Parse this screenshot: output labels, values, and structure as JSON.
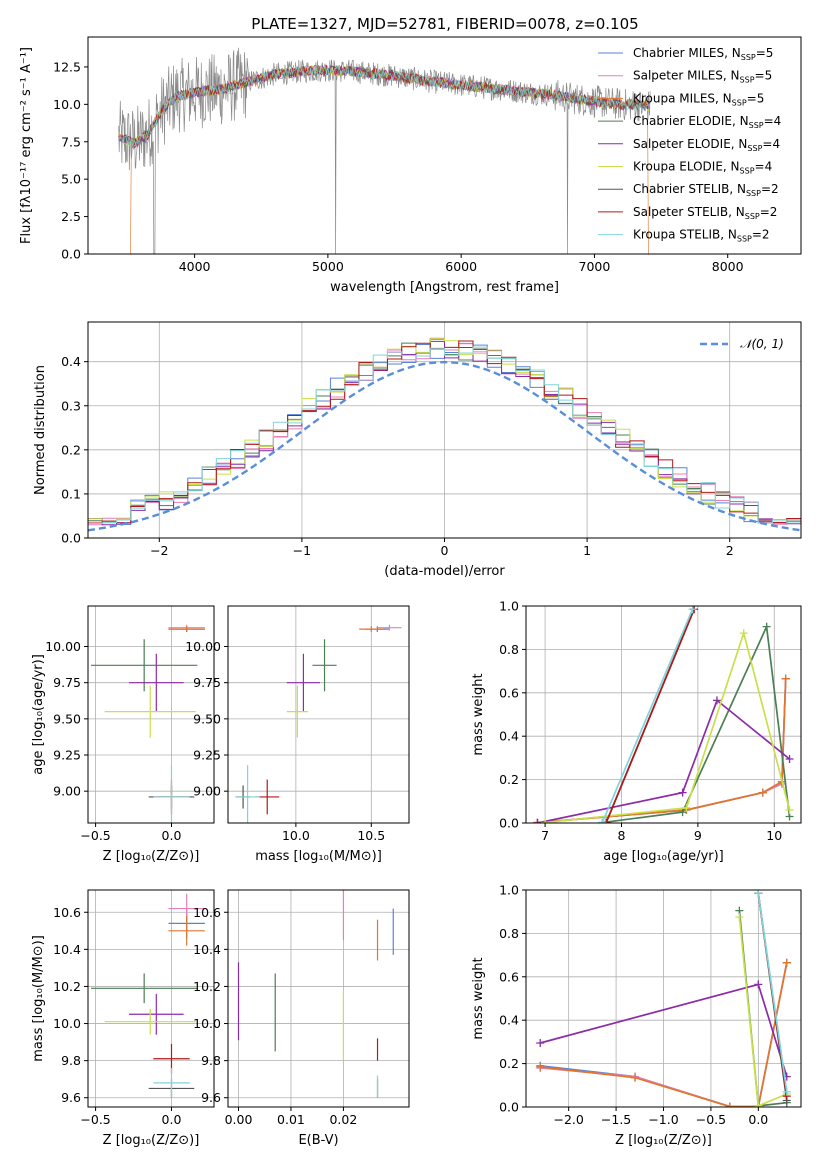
{
  "title": "PLATE=1327, MJD=52781, FIBERID=0078, z=0.105",
  "colors": {
    "chabrier_miles": "#5a83d6",
    "salpeter_miles": "#e77fb8",
    "kroupa_miles": "#e0762e",
    "chabrier_elodie": "#4c7f55",
    "salpeter_elodie": "#8c2ba8",
    "kroupa_elodie": "#c8e04a",
    "chabrier_stelib": "#555555",
    "salpeter_stelib": "#b01a1a",
    "kroupa_stelib": "#80d4dc",
    "data": "#8a8a8a"
  },
  "legend": [
    {
      "pre": "Chabrier MILES, N",
      "sub": "SSP",
      "post": "=5",
      "key": "chabrier_miles"
    },
    {
      "pre": "Salpeter MILES, N",
      "sub": "SSP",
      "post": "=5",
      "key": "salpeter_miles"
    },
    {
      "pre": "Kroupa MILES, N",
      "sub": "SSP",
      "post": "=5",
      "key": "kroupa_miles"
    },
    {
      "pre": "Chabrier ELODIE, N",
      "sub": "SSP",
      "post": "=4",
      "key": "chabrier_elodie"
    },
    {
      "pre": "Salpeter ELODIE, N",
      "sub": "SSP",
      "post": "=4",
      "key": "salpeter_elodie"
    },
    {
      "pre": "Kroupa ELODIE, N",
      "sub": "SSP",
      "post": "=4",
      "key": "kroupa_elodie"
    },
    {
      "pre": "Chabrier STELIB, N",
      "sub": "SSP",
      "post": "=2",
      "key": "chabrier_stelib"
    },
    {
      "pre": "Salpeter STELIB, N",
      "sub": "SSP",
      "post": "=2",
      "key": "salpeter_stelib"
    },
    {
      "pre": "Kroupa STELIB, N",
      "sub": "SSP",
      "post": "=2",
      "key": "kroupa_stelib"
    }
  ],
  "chart_data": [
    {
      "id": "spectrum",
      "type": "line",
      "xlabel": "wavelength [Angstrom, rest frame]",
      "ylabel": "Flux [fλ10⁻¹⁷ erg cm⁻² s⁻¹ A⁻¹]",
      "xlim": [
        3200,
        8550
      ],
      "ylim": [
        0,
        14.5
      ],
      "xticks": [
        4000,
        5000,
        6000,
        7000,
        8000
      ],
      "yticks": [
        0.0,
        2.5,
        5.0,
        7.5,
        10.0,
        12.5
      ],
      "ytick_labels": [
        "0.0",
        "2.5",
        "5.0",
        "7.5",
        "10.0",
        "12.5"
      ],
      "grid": false,
      "legend_position": "right",
      "data_range": [
        3430,
        7420
      ],
      "continuum": {
        "x": [
          3430,
          3550,
          3650,
          3750,
          3850,
          4000,
          4200,
          4400,
          4600,
          4800,
          5000,
          5200,
          5500,
          5800,
          6100,
          6400,
          6700,
          7000,
          7200,
          7420
        ],
        "y": [
          7.8,
          7.4,
          8.0,
          9.5,
          10.5,
          10.8,
          11.0,
          11.5,
          12.0,
          12.2,
          12.3,
          12.2,
          11.9,
          11.5,
          11.2,
          10.9,
          10.6,
          10.2,
          10.0,
          9.9
        ]
      }
    },
    {
      "id": "residuals",
      "type": "histogram",
      "xlabel": "(data-model)/error",
      "ylabel": "Normed distribution",
      "xlim": [
        -2.5,
        2.5
      ],
      "ylim": [
        0,
        0.49
      ],
      "xticks": [
        -2,
        -1,
        0,
        1,
        2
      ],
      "xtick_labels": [
        "−2",
        "−1",
        "0",
        "1",
        "2"
      ],
      "yticks": [
        0.0,
        0.1,
        0.2,
        0.3,
        0.4
      ],
      "ytick_labels": [
        "0.0",
        "0.1",
        "0.2",
        "0.3",
        "0.4"
      ],
      "grid": true,
      "legend": "𝒩(0, 1)",
      "legend_position": "top-right",
      "bin_width": 0.1
    },
    {
      "id": "age_vs_Z",
      "type": "errorbar",
      "xlabel": "Z [log₁₀(Z/Z⊙)]",
      "ylabel": "age  [log₁₀(age/yr)]",
      "xlim": [
        -0.55,
        0.28
      ],
      "ylim": [
        8.78,
        10.28
      ],
      "xticks": [
        -0.5,
        0.0
      ],
      "xtick_labels": [
        "−0.5",
        "0.0"
      ],
      "yticks": [
        9.0,
        9.25,
        9.5,
        9.75,
        10.0
      ],
      "ytick_labels": [
        "9.00",
        "9.25",
        "9.50",
        "9.75",
        "10.00"
      ],
      "grid": true
    },
    {
      "id": "age_vs_mass",
      "type": "errorbar",
      "xlabel": "mass [log₁₀(M/M⊙)]",
      "ylabel": "",
      "xlim": [
        9.55,
        10.75
      ],
      "ylim": [
        8.78,
        10.28
      ],
      "xticks": [
        10.0,
        10.5
      ],
      "xtick_labels": [
        "10.0",
        "10.5"
      ],
      "yticks": [
        9.0,
        9.25,
        9.5,
        9.75,
        10.0
      ],
      "ytick_labels": [
        "9.00",
        "9.25",
        "9.50",
        "9.75",
        "10.00"
      ],
      "grid": true
    },
    {
      "id": "weight_vs_age",
      "type": "line",
      "xlabel": "age  [log₁₀(age/yr)]",
      "ylabel": "mass weight",
      "xlim": [
        6.75,
        10.35
      ],
      "ylim": [
        0,
        1.0
      ],
      "xticks": [
        7,
        8,
        9,
        10
      ],
      "xtick_labels": [
        "7",
        "8",
        "9",
        "10"
      ],
      "yticks": [
        0.0,
        0.2,
        0.4,
        0.6,
        0.8,
        1.0
      ],
      "ytick_labels": [
        "0.0",
        "0.2",
        "0.4",
        "0.6",
        "0.8",
        "1.0"
      ],
      "grid": true
    },
    {
      "id": "mass_vs_Z",
      "type": "errorbar",
      "xlabel": "Z [log₁₀(Z/Z⊙)]",
      "ylabel": "mass [log₁₀(M/M⊙)]",
      "xlim": [
        -0.55,
        0.28
      ],
      "ylim": [
        9.55,
        10.72
      ],
      "xticks": [
        -0.5,
        0.0
      ],
      "xtick_labels": [
        "−0.5",
        "0.0"
      ],
      "yticks": [
        9.6,
        9.8,
        10.0,
        10.2,
        10.4,
        10.6
      ],
      "ytick_labels": [
        "9.6",
        "9.8",
        "10.0",
        "10.2",
        "10.4",
        "10.6"
      ],
      "grid": true
    },
    {
      "id": "mass_vs_EBV",
      "type": "errorbar",
      "xlabel": "E(B-V)",
      "ylabel": "",
      "xlim": [
        -0.002,
        0.0325
      ],
      "ylim": [
        9.55,
        10.72
      ],
      "xticks": [
        0.0,
        0.01,
        0.02
      ],
      "xtick_labels": [
        "0.00",
        "0.01",
        "0.02"
      ],
      "yticks": [
        9.6,
        9.8,
        10.0,
        10.2,
        10.4,
        10.6
      ],
      "ytick_labels": [
        "9.6",
        "9.8",
        "10.0",
        "10.2",
        "10.4",
        "10.6"
      ],
      "grid": true
    },
    {
      "id": "weight_vs_Z",
      "type": "line",
      "xlabel": "Z [log₁₀(Z/Z⊙)]",
      "ylabel": "mass weight",
      "xlim": [
        -2.45,
        0.45
      ],
      "ylim": [
        0,
        1.0
      ],
      "xticks": [
        -2.0,
        -1.5,
        -1.0,
        -0.5,
        0.0
      ],
      "xtick_labels": [
        "−2.0",
        "−1.5",
        "−1.0",
        "−0.5",
        "0.0"
      ],
      "yticks": [
        0.0,
        0.2,
        0.4,
        0.6,
        0.8,
        1.0
      ],
      "ytick_labels": [
        "0.0",
        "0.2",
        "0.4",
        "0.6",
        "0.8",
        "1.0"
      ],
      "grid": true
    }
  ],
  "fits": [
    {
      "key": "chabrier_miles",
      "Z": [
        0.1,
        0.12
      ],
      "age": [
        10.12,
        0.02
      ],
      "mass": [
        10.54,
        0.08
      ],
      "ebv": [
        0.0295,
        10.37,
        10.62
      ],
      "ssp_age": [
        6.9,
        8.85,
        9.85,
        10.1,
        10.15
      ],
      "ssp_w": [
        0.002,
        0.06,
        0.14,
        0.19,
        0.665
      ],
      "ssp_Z": [
        -2.3,
        -1.3,
        -0.3,
        0.0,
        0.3
      ],
      "ssp_wZ": [
        0.19,
        0.14,
        0.002,
        0.002,
        0.665
      ]
    },
    {
      "key": "salpeter_miles",
      "Z": [
        0.1,
        0.12
      ],
      "age": [
        10.13,
        0.02
      ],
      "mass": [
        10.62,
        0.08
      ],
      "ebv": [
        0.02,
        10.45,
        10.72
      ],
      "ssp_age": [
        6.9,
        8.85,
        9.85,
        10.1,
        10.15
      ],
      "ssp_w": [
        0.002,
        0.06,
        0.14,
        0.18,
        0.665
      ],
      "ssp_Z": [
        -2.3,
        -1.3,
        -0.3,
        0.0,
        0.3
      ],
      "ssp_wZ": [
        0.18,
        0.14,
        0.002,
        0.002,
        0.665
      ]
    },
    {
      "key": "kroupa_miles",
      "Z": [
        0.1,
        0.12
      ],
      "age": [
        10.12,
        0.02
      ],
      "mass": [
        10.5,
        0.08
      ],
      "ebv": [
        0.0265,
        10.34,
        10.56
      ],
      "ssp_age": [
        6.9,
        8.85,
        9.85,
        10.1,
        10.15
      ],
      "ssp_w": [
        0.002,
        0.06,
        0.14,
        0.19,
        0.665
      ],
      "ssp_Z": [
        -2.3,
        -1.3,
        -0.3,
        0.0,
        0.3
      ],
      "ssp_wZ": [
        0.185,
        0.135,
        0.002,
        0.002,
        0.665
      ]
    },
    {
      "key": "chabrier_elodie",
      "Z": [
        -0.18,
        0.35
      ],
      "age": [
        9.87,
        0.18
      ],
      "mass": [
        10.19,
        0.08
      ],
      "ebv": [
        0.007,
        9.85,
        10.27
      ],
      "ssp_age": [
        7.75,
        8.8,
        9.9,
        10.2
      ],
      "ssp_w": [
        0.002,
        0.05,
        0.905,
        0.03
      ],
      "ssp_Z": [
        -0.2,
        0.0,
        0.3
      ],
      "ssp_wZ": [
        0.905,
        0.005,
        0.02
      ]
    },
    {
      "key": "salpeter_elodie",
      "Z": [
        -0.1,
        0.18
      ],
      "age": [
        9.75,
        0.2
      ],
      "mass": [
        10.05,
        0.11
      ],
      "ebv": [
        0.0,
        9.91,
        10.33
      ],
      "ssp_age": [
        6.9,
        8.8,
        9.25,
        10.2
      ],
      "ssp_w": [
        0.0,
        0.14,
        0.565,
        0.295
      ],
      "ssp_Z": [
        -2.3,
        0.0,
        0.3
      ],
      "ssp_wZ": [
        0.295,
        0.565,
        0.14
      ]
    },
    {
      "key": "kroupa_elodie",
      "Z": [
        -0.14,
        0.3
      ],
      "age": [
        9.55,
        0.18
      ],
      "mass": [
        10.01,
        0.07
      ],
      "ebv": [
        0.02,
        9.8,
        10.18
      ],
      "ssp_age": [
        7.0,
        8.85,
        9.6,
        10.2
      ],
      "ssp_w": [
        0.002,
        0.07,
        0.875,
        0.06
      ],
      "ssp_Z": [
        -0.2,
        0.0,
        0.3
      ],
      "ssp_wZ": [
        0.875,
        0.005,
        0.06
      ]
    },
    {
      "key": "chabrier_stelib",
      "Z": [
        0.0,
        0.15
      ],
      "age": [
        8.96,
        0.08
      ],
      "mass": [
        9.65,
        0.05
      ],
      "ebv": [
        0.0265,
        9.6,
        9.7
      ],
      "ssp_age": [
        7.8,
        8.95
      ],
      "ssp_w": [
        0.002,
        0.985
      ],
      "ssp_Z": [
        0.0,
        0.3
      ],
      "ssp_wZ": [
        0.985,
        0.03
      ]
    },
    {
      "key": "salpeter_stelib",
      "Z": [
        0.0,
        0.12
      ],
      "age": [
        8.96,
        0.12
      ],
      "mass": [
        9.81,
        0.08
      ],
      "ebv": [
        0.0265,
        9.8,
        9.92
      ],
      "ssp_age": [
        7.8,
        8.95
      ],
      "ssp_w": [
        0.002,
        0.985
      ],
      "ssp_Z": [
        0.0,
        0.3
      ],
      "ssp_wZ": [
        0.985,
        0.05
      ]
    },
    {
      "key": "kroupa_stelib",
      "Z": [
        0.0,
        0.12
      ],
      "age": [
        8.96,
        0.22
      ],
      "mass": [
        9.68,
        0.08
      ],
      "ebv": [
        0.0265,
        9.6,
        9.72
      ],
      "ssp_age": [
        7.75,
        8.93
      ],
      "ssp_w": [
        0.002,
        0.985
      ],
      "ssp_Z": [
        0.0,
        0.3
      ],
      "ssp_wZ": [
        0.985,
        0.07
      ]
    }
  ]
}
